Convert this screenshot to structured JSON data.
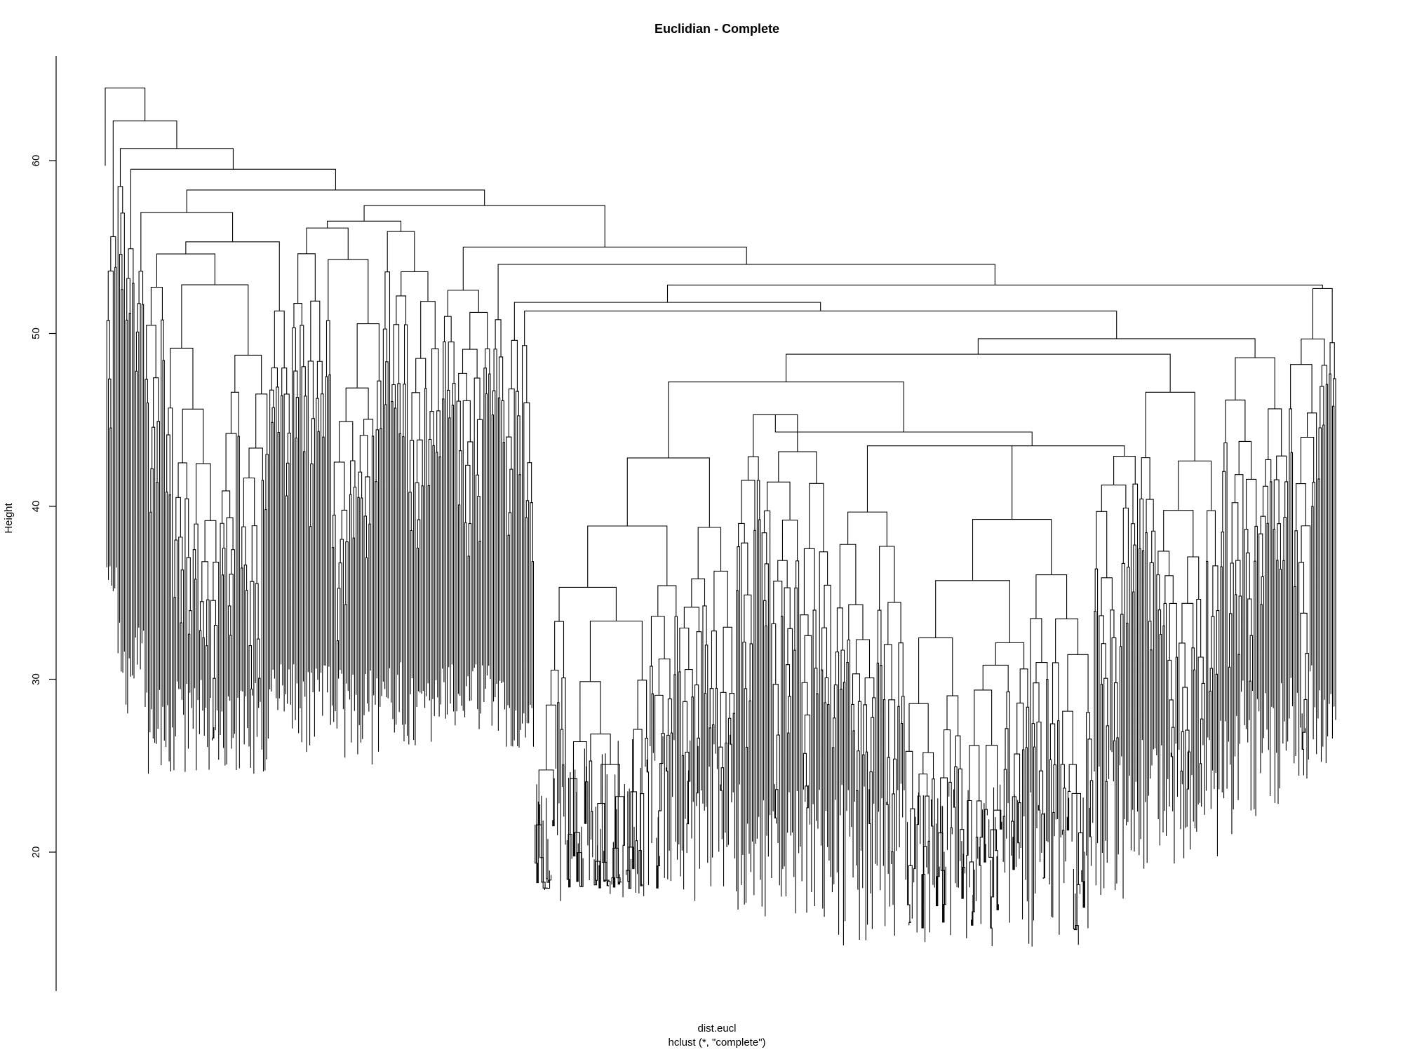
{
  "chart_data": {
    "type": "dendrogram",
    "title": "Euclidian - Complete",
    "xlabel": "dist.eucl",
    "sub": "hclust (*, \"complete\")",
    "ylabel": "Height",
    "ylim": [
      12,
      66
    ],
    "yticks": [
      20,
      30,
      40,
      50,
      60
    ],
    "grid": false,
    "legend": "none",
    "line_color": "#000000",
    "leaf_count": 720,
    "leaf_height_range": [
      14.5,
      31.5
    ],
    "top_merges": [
      {
        "height": 64.2,
        "joins": "singleton | rest"
      },
      {
        "height": 62.3,
        "joins": "left cluster | rest"
      },
      {
        "height": 60.7,
        "joins": "left cluster | rest"
      },
      {
        "height": 59.5,
        "joins": "left cluster | rest"
      },
      {
        "height": 58.3,
        "joins": "left-middle cluster | rest"
      },
      {
        "height": 57.4,
        "joins": "middle cluster | rest"
      },
      {
        "height": 56.5,
        "joins": "middle cluster | rest"
      },
      {
        "height": 55.0,
        "joins": "middle cluster | rest"
      },
      {
        "height": 54.0,
        "joins": "middle cluster | rest"
      },
      {
        "height": 52.8,
        "joins": "middle cluster | right block"
      },
      {
        "height": 49.7,
        "joins": "large middle cluster | right cluster"
      },
      {
        "height": 48.8,
        "joins": "lower middle cluster | right-middle cluster"
      },
      {
        "height": 47.2,
        "joins": "lower-left cluster | central cluster"
      },
      {
        "height": 44.3,
        "joins": "central cluster | right-central cluster"
      },
      {
        "height": 43.5,
        "joins": "central cluster | right-central cluster"
      }
    ]
  }
}
